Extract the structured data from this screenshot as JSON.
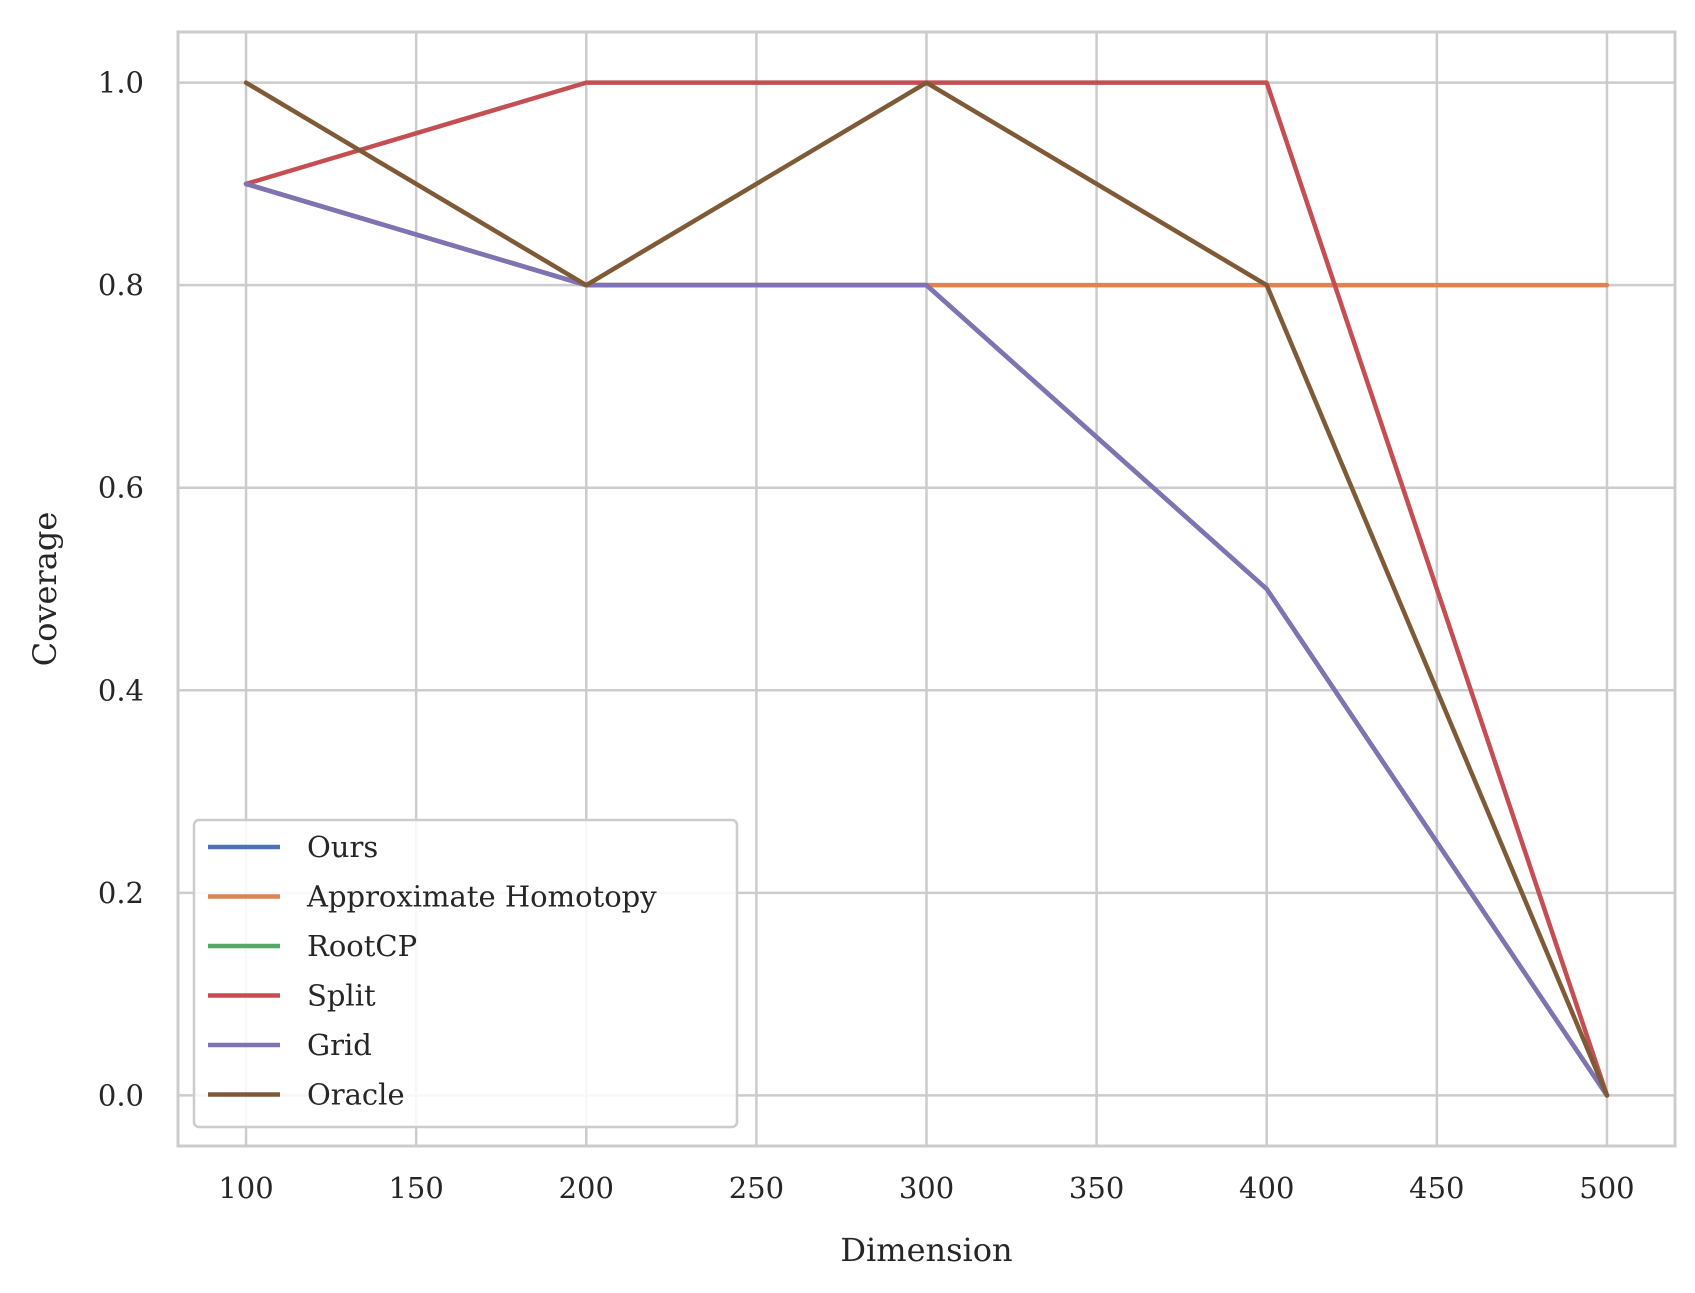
{
  "chart_data": {
    "type": "line",
    "title": "",
    "xlabel": "Dimension",
    "ylabel": "Coverage",
    "x": [
      100,
      200,
      300,
      400,
      500
    ],
    "xlim": [
      80,
      520
    ],
    "ylim": [
      -0.05,
      1.05
    ],
    "xticks": [
      100,
      150,
      200,
      250,
      300,
      350,
      400,
      450,
      500
    ],
    "yticks": [
      0.0,
      0.2,
      0.4,
      0.6,
      0.8,
      1.0
    ],
    "ytick_labels": [
      "0.0",
      "0.2",
      "0.4",
      "0.6",
      "0.8",
      "1.0"
    ],
    "grid": true,
    "legend_position": "lower-left",
    "series": [
      {
        "name": "Ours",
        "color": "#4c72b0",
        "values": [
          0.9,
          0.8,
          0.8,
          0.5,
          0.0
        ]
      },
      {
        "name": "Approximate Homotopy",
        "color": "#dd8452",
        "values": [
          0.9,
          0.8,
          0.8,
          0.8,
          0.8
        ]
      },
      {
        "name": "RootCP",
        "color": "#55a868",
        "values": [
          0.9,
          0.8,
          0.8,
          0.5,
          0.0
        ]
      },
      {
        "name": "Split",
        "color": "#c44e52",
        "values": [
          0.9,
          1.0,
          1.0,
          1.0,
          0.0
        ]
      },
      {
        "name": "Grid",
        "color": "#8172b3",
        "values": [
          0.9,
          0.8,
          0.8,
          0.5,
          0.0
        ]
      },
      {
        "name": "Oracle",
        "color": "#7f5a36",
        "values": [
          1.0,
          0.8,
          1.0,
          0.8,
          0.0
        ]
      }
    ]
  }
}
